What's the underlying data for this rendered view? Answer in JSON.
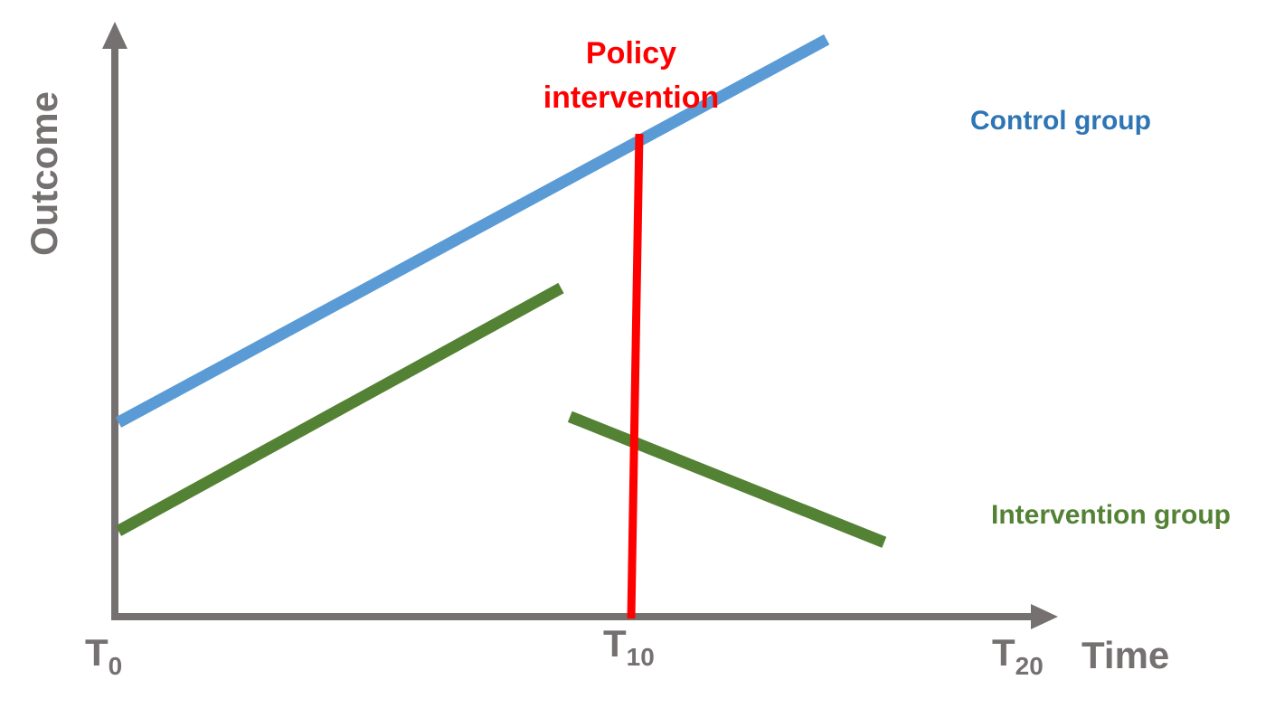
{
  "chart_data": {
    "type": "line",
    "xlabel": "Time",
    "ylabel": "Outcome",
    "x_ticks": [
      {
        "main": "T",
        "sub": "0"
      },
      {
        "main": "T",
        "sub": "10"
      },
      {
        "main": "T",
        "sub": "20"
      }
    ],
    "xlim": [
      0,
      20
    ],
    "ylim": [
      0,
      10
    ],
    "intervention": {
      "label_line1": "Policy",
      "label_line2": "intervention",
      "x": 10,
      "color": "#ff0000"
    },
    "series": [
      {
        "name": "Control group",
        "color": "#5b9bd5",
        "label_color": "#2e75b6",
        "points": [
          [
            0,
            3.4
          ],
          [
            16,
            10.1
          ]
        ]
      },
      {
        "name": "Intervention group",
        "color": "#548235",
        "label_color": "#548235",
        "segments": [
          [
            [
              0,
              1.5
            ],
            [
              10,
              5.75
            ]
          ],
          [
            [
              10.2,
              3.5
            ],
            [
              17.3,
              1.3
            ]
          ]
        ]
      }
    ]
  }
}
